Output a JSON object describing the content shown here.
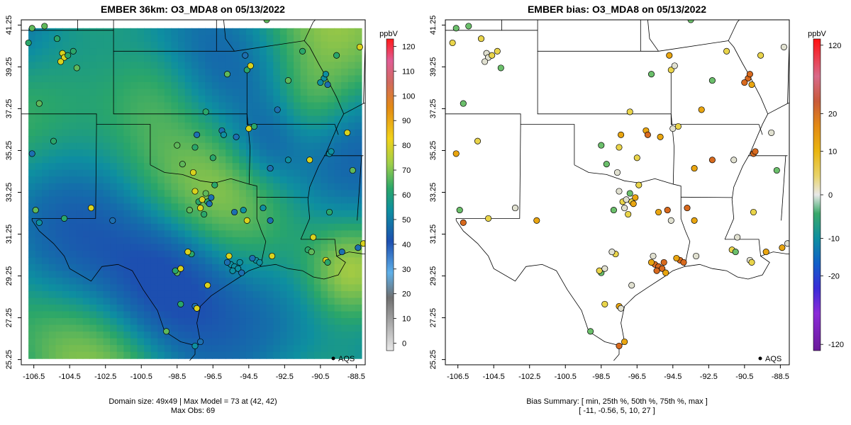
{
  "left_panel": {
    "title": "EMBER 36km: O3_MDA8 on 05/13/2022",
    "colorbar_unit": "ppbV",
    "colorbar_ticks": [
      "0",
      "10",
      "20",
      "30",
      "40",
      "50",
      "60",
      "70",
      "80",
      "90",
      "100",
      "110",
      "120"
    ],
    "colorbar_values": [
      0,
      10,
      20,
      30,
      40,
      50,
      60,
      70,
      80,
      90,
      100,
      110,
      120
    ],
    "footer_line1": "Domain size: 49x49 | Max Model = 73 at (42, 42)",
    "footer_line2": "Max Obs: 69",
    "legend_label": "AQS"
  },
  "right_panel": {
    "title": "EMBER bias: O3_MDA8 on 05/13/2022",
    "colorbar_unit": "ppbV",
    "colorbar_ticks": [
      "-120",
      "-20",
      "-10",
      "0",
      "10",
      "20",
      "120"
    ],
    "colorbar_values": [
      -120,
      -20,
      -10,
      0,
      10,
      20,
      120
    ],
    "footer_line1": "Bias Summary: [ min, 25th %, 50th %, 75th %, max ]",
    "footer_line2": "[ -11,   -0.56,   5,   10,   27 ]",
    "legend_label": "AQS"
  },
  "axes": {
    "x_ticks": [
      "-106.5",
      "-104.5",
      "-102.5",
      "-100.5",
      "-98.5",
      "-96.5",
      "-94.5",
      "-92.5",
      "-90.5",
      "-88.5"
    ],
    "x_values": [
      -106.5,
      -104.5,
      -102.5,
      -100.5,
      -98.5,
      -96.5,
      -94.5,
      -92.5,
      -90.5,
      -88.5
    ],
    "y_ticks": [
      "25.25",
      "27.25",
      "29.25",
      "31.25",
      "33.25",
      "35.25",
      "37.25",
      "39.25",
      "41.25"
    ],
    "y_values": [
      25.25,
      27.25,
      29.25,
      31.25,
      33.25,
      35.25,
      37.25,
      39.25,
      41.25
    ],
    "lon_range": [
      -107.2,
      -88.0
    ],
    "lat_range": [
      25.0,
      41.5
    ]
  },
  "stats": {
    "max_model": 73,
    "max_model_cell": [
      42,
      42
    ],
    "max_obs": 69,
    "domain_size": "49x49",
    "bias_summary": {
      "min": -11,
      "p25": -0.56,
      "p50": 5,
      "p75": 10,
      "max": 27
    }
  },
  "sites": [
    [
      -106.6,
      41.1,
      "a"
    ],
    [
      -106.8,
      40.4,
      "b"
    ],
    [
      -105.9,
      41.2,
      "a"
    ],
    [
      -105.2,
      40.6,
      "b"
    ],
    [
      -104.9,
      39.9,
      "c"
    ],
    [
      -104.8,
      39.7,
      "c"
    ],
    [
      -104.6,
      39.8,
      "b"
    ],
    [
      -104.3,
      40.0,
      "b"
    ],
    [
      -105.0,
      39.5,
      "c"
    ],
    [
      -104.1,
      39.2,
      "a"
    ],
    [
      -106.2,
      37.5,
      "a"
    ],
    [
      -105.4,
      35.7,
      "b"
    ],
    [
      -106.6,
      35.1,
      "d"
    ],
    [
      -106.4,
      32.4,
      "a"
    ],
    [
      -106.2,
      31.8,
      "e"
    ],
    [
      -104.8,
      32.0,
      "b"
    ],
    [
      -103.3,
      32.5,
      "c"
    ],
    [
      -102.1,
      31.9,
      "d"
    ],
    [
      -98.5,
      35.5,
      "a"
    ],
    [
      -97.5,
      35.4,
      "b"
    ],
    [
      -97.4,
      36.0,
      "d"
    ],
    [
      -96.0,
      36.2,
      "d"
    ],
    [
      -95.9,
      36.0,
      "e"
    ],
    [
      -96.5,
      34.9,
      "b"
    ],
    [
      -98.2,
      34.6,
      "a"
    ],
    [
      -97.6,
      34.2,
      "c"
    ],
    [
      -95.2,
      35.9,
      "d"
    ],
    [
      -96.9,
      37.1,
      "b"
    ],
    [
      -95.7,
      38.9,
      "a"
    ],
    [
      -94.6,
      39.1,
      "b"
    ],
    [
      -94.4,
      39.3,
      "c"
    ],
    [
      -94.7,
      39.8,
      "d"
    ],
    [
      -92.3,
      38.6,
      "a"
    ],
    [
      -90.3,
      38.7,
      "e"
    ],
    [
      -90.5,
      38.5,
      "e"
    ],
    [
      -90.1,
      38.4,
      "d"
    ],
    [
      -90.2,
      38.9,
      "e"
    ],
    [
      -89.6,
      39.8,
      "b"
    ],
    [
      -88.3,
      40.2,
      "c"
    ],
    [
      -91.5,
      40.0,
      "b"
    ],
    [
      -93.5,
      41.5,
      "a"
    ],
    [
      -93.8,
      41.7,
      "a"
    ],
    [
      -92.9,
      37.2,
      "d"
    ],
    [
      -94.5,
      36.3,
      "c"
    ],
    [
      -94.2,
      36.4,
      "b"
    ],
    [
      -92.3,
      34.8,
      "e"
    ],
    [
      -93.3,
      34.4,
      "d"
    ],
    [
      -91.1,
      34.8,
      "c"
    ],
    [
      -90.0,
      35.1,
      "e"
    ],
    [
      -89.9,
      35.2,
      "e"
    ],
    [
      -89.0,
      36.1,
      "c"
    ],
    [
      -88.7,
      34.3,
      "a"
    ],
    [
      -97.3,
      32.8,
      "b"
    ],
    [
      -97.1,
      32.9,
      "c"
    ],
    [
      -96.8,
      32.8,
      "b"
    ],
    [
      -96.9,
      33.2,
      "a"
    ],
    [
      -96.6,
      33.0,
      "d"
    ],
    [
      -97.2,
      32.5,
      "c"
    ],
    [
      -96.4,
      33.6,
      "b"
    ],
    [
      -97.8,
      32.4,
      "a"
    ],
    [
      -97.0,
      32.2,
      "b"
    ],
    [
      -96.7,
      32.7,
      "d"
    ],
    [
      -97.5,
      33.3,
      "c"
    ],
    [
      -95.3,
      32.3,
      "d"
    ],
    [
      -94.8,
      32.4,
      "e"
    ],
    [
      -94.6,
      31.9,
      "c"
    ],
    [
      -93.7,
      32.5,
      "e"
    ],
    [
      -93.3,
      31.9,
      "d"
    ],
    [
      -97.7,
      30.3,
      "b"
    ],
    [
      -97.9,
      30.4,
      "c"
    ],
    [
      -98.5,
      29.4,
      "a"
    ],
    [
      -98.6,
      29.5,
      "b"
    ],
    [
      -98.3,
      29.6,
      "c"
    ],
    [
      -95.5,
      29.8,
      "e"
    ],
    [
      -95.3,
      29.7,
      "e"
    ],
    [
      -95.1,
      29.6,
      "e"
    ],
    [
      -95.4,
      29.5,
      "e"
    ],
    [
      -95.0,
      29.9,
      "e"
    ],
    [
      -94.9,
      29.4,
      "d"
    ],
    [
      -95.7,
      29.9,
      "d"
    ],
    [
      -94.1,
      30.0,
      "e"
    ],
    [
      -93.9,
      29.9,
      "e"
    ],
    [
      -94.3,
      30.1,
      "d"
    ],
    [
      -95.6,
      30.2,
      "c"
    ],
    [
      -93.2,
      30.2,
      "c"
    ],
    [
      -91.2,
      30.5,
      "b"
    ],
    [
      -91.0,
      30.4,
      "a"
    ],
    [
      -90.2,
      30.0,
      "c"
    ],
    [
      -90.1,
      29.9,
      "b"
    ],
    [
      -89.3,
      30.4,
      "d"
    ],
    [
      -88.4,
      30.6,
      "d"
    ],
    [
      -88.1,
      30.8,
      "c"
    ],
    [
      -90.0,
      32.3,
      "b"
    ],
    [
      -90.9,
      31.1,
      "c"
    ],
    [
      -97.5,
      27.8,
      "d"
    ],
    [
      -97.4,
      27.7,
      "c"
    ],
    [
      -97.5,
      25.9,
      "e"
    ],
    [
      -97.2,
      26.1,
      "d"
    ],
    [
      -99.1,
      26.6,
      "a"
    ],
    [
      -98.3,
      27.9,
      "b"
    ],
    [
      -96.8,
      28.8,
      "c"
    ]
  ],
  "legend": {
    "aqs_symbol": "black-dot"
  }
}
